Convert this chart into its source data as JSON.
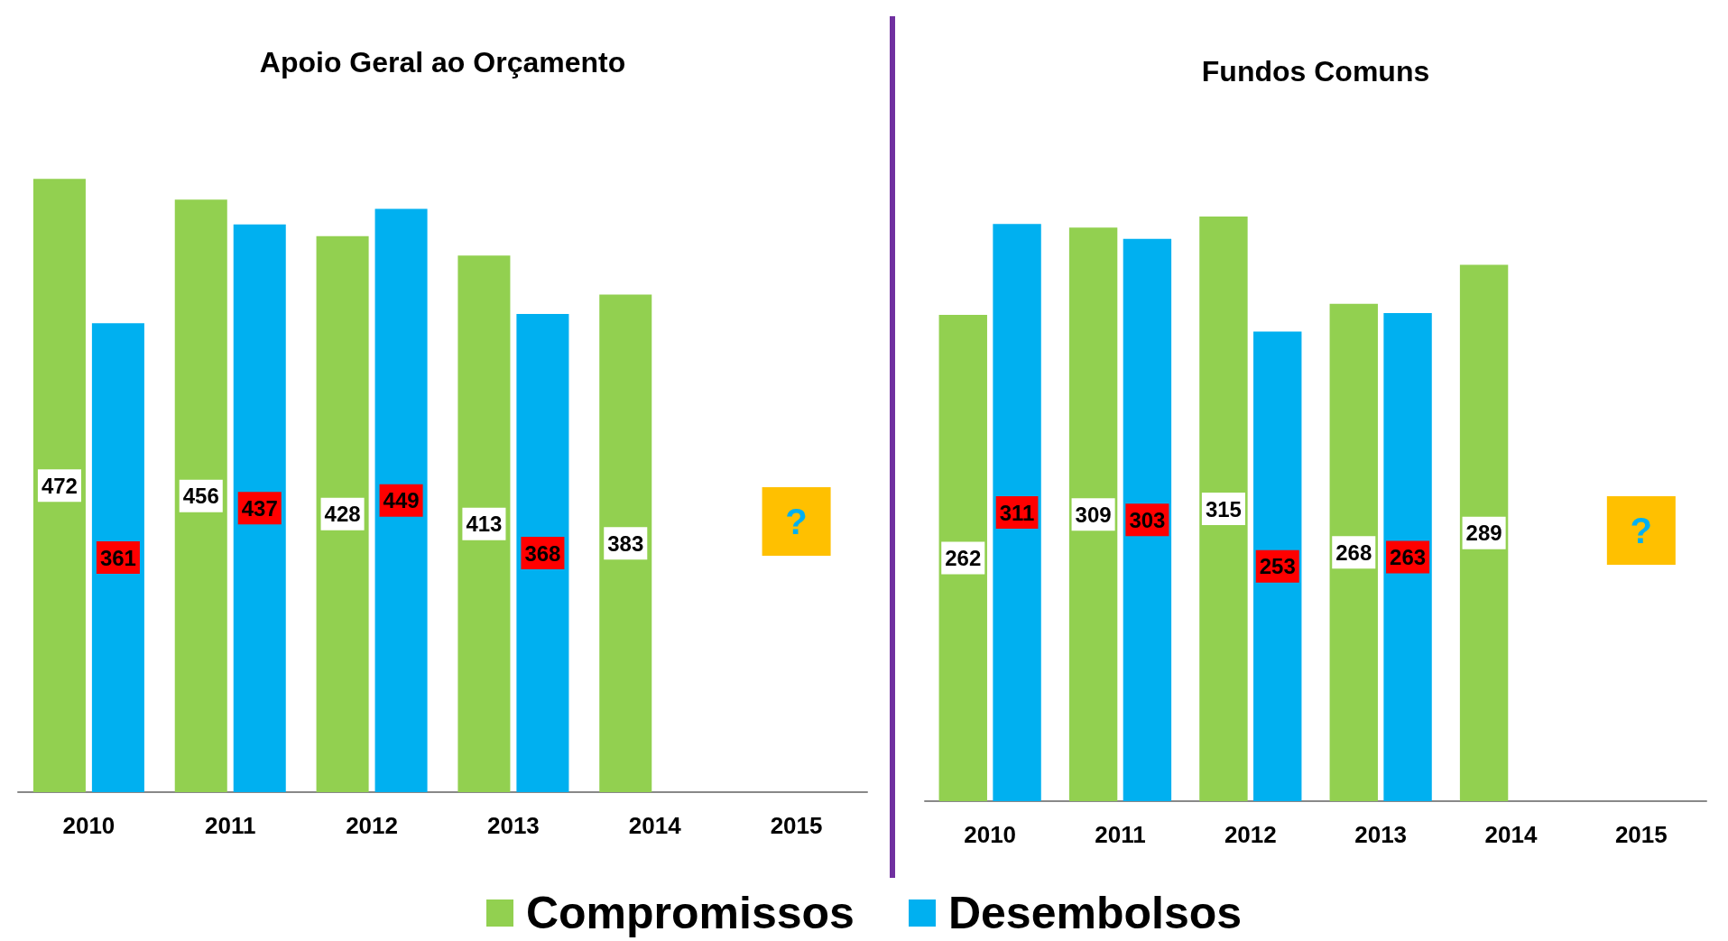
{
  "chart_data": [
    {
      "type": "bar",
      "title": "Apoio Geral ao Orçamento",
      "categories": [
        "2010",
        "2011",
        "2012",
        "2013",
        "2014",
        "2015"
      ],
      "series": [
        {
          "name": "Compromissos",
          "color": "#92d050",
          "values": [
            472,
            456,
            428,
            413,
            383,
            null
          ]
        },
        {
          "name": "Desembolsos",
          "color": "#00b0f0",
          "values": [
            361,
            437,
            449,
            368,
            null,
            null
          ]
        }
      ],
      "data_labels": true,
      "grid": false,
      "tick_labels": "x",
      "legend": "bottom",
      "annotations": [
        "?"
      ]
    },
    {
      "type": "bar",
      "title": "Fundos Comuns",
      "categories": [
        "2010",
        "2011",
        "2012",
        "2013",
        "2014",
        "2015"
      ],
      "series": [
        {
          "color": "#92d050",
          "values": [
            262,
            309,
            315,
            268,
            289,
            null
          ]
        },
        {
          "color": "#00b0f0",
          "values": [
            311,
            303,
            253,
            263,
            null,
            null
          ]
        }
      ],
      "data_labels": true,
      "grid": false,
      "tick_labels": "x",
      "annotations": [
        "?"
      ]
    }
  ]
}
